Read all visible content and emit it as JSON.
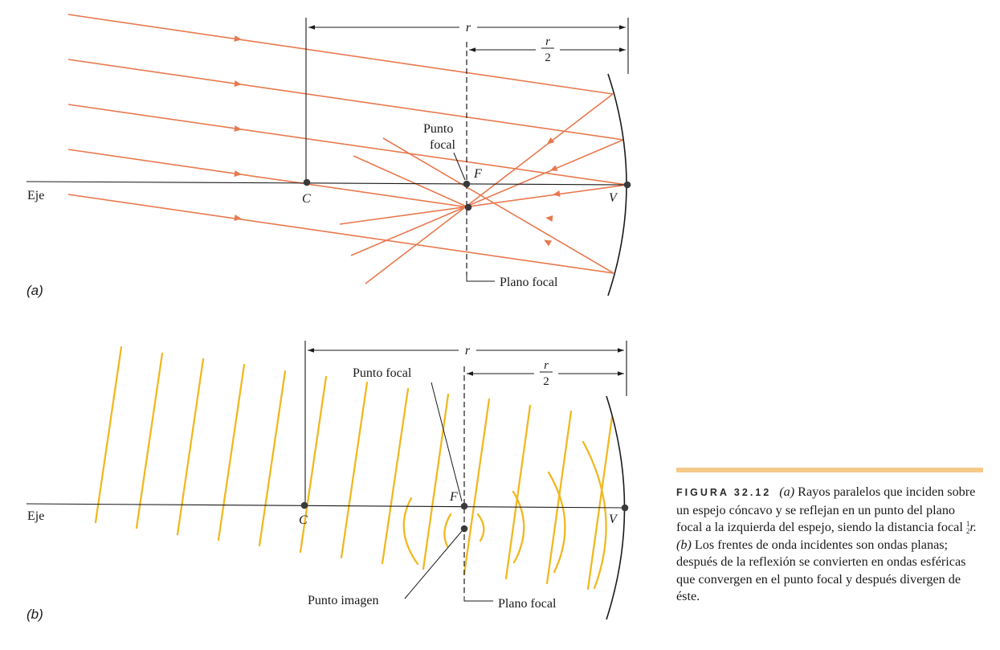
{
  "panel_a": {
    "panel_label": "(a)",
    "axis_label": "Eje",
    "point_c": "C",
    "point_f": "F",
    "point_v": "V",
    "dim_r": "r",
    "dim_half_num": "r",
    "dim_half_den": "2",
    "focal_point_line1": "Punto",
    "focal_point_line2": "focal",
    "focal_plane": "Plano focal"
  },
  "panel_b": {
    "panel_label": "(b)",
    "axis_label": "Eje",
    "point_c": "C",
    "point_f": "F",
    "point_v": "V",
    "dim_r": "r",
    "dim_half_num": "r",
    "dim_half_den": "2",
    "focal_point": "Punto focal",
    "image_point": "Punto imagen",
    "focal_plane": "Plano focal"
  },
  "caption": {
    "label": "FIGURA 32.12",
    "text_a1": "Rayos paralelos que inciden sobre un espejo cóncavo y se reflejan en un punto del plano focal a la izquierda del espejo, siendo la distancia focal",
    "frac_num": "1",
    "frac_den": "2",
    "text_a2": "r.",
    "text_b": "Los frentes de onda incidentes son ondas planas; después de la reflexión se convierten en ondas esféricas que convergen en el punto focal y después divergen de éste.",
    "part_a": "(a)",
    "part_b": "(b)"
  },
  "colors": {
    "ray": "#e8794f",
    "wavefront": "#f0b820",
    "ink": "#1a1a1a",
    "caption_rule": "#f5c98a"
  }
}
